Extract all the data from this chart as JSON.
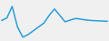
{
  "x": [
    0,
    1,
    2,
    3,
    4,
    5,
    6,
    7,
    8,
    9,
    10,
    11,
    12,
    13,
    14,
    15,
    16,
    17,
    18,
    19,
    20
  ],
  "y": [
    3.0,
    4.0,
    8.5,
    0.5,
    -3.5,
    -2.5,
    -1.0,
    0.5,
    2.0,
    5.0,
    7.5,
    5.0,
    2.5,
    3.2,
    3.8,
    3.5,
    3.2,
    3.0,
    2.9,
    2.8,
    2.7
  ],
  "line_color": "#2a9fd8",
  "linewidth": 1.1,
  "background_color": "#f0f0f0",
  "ylim_min": -5,
  "ylim_max": 11
}
